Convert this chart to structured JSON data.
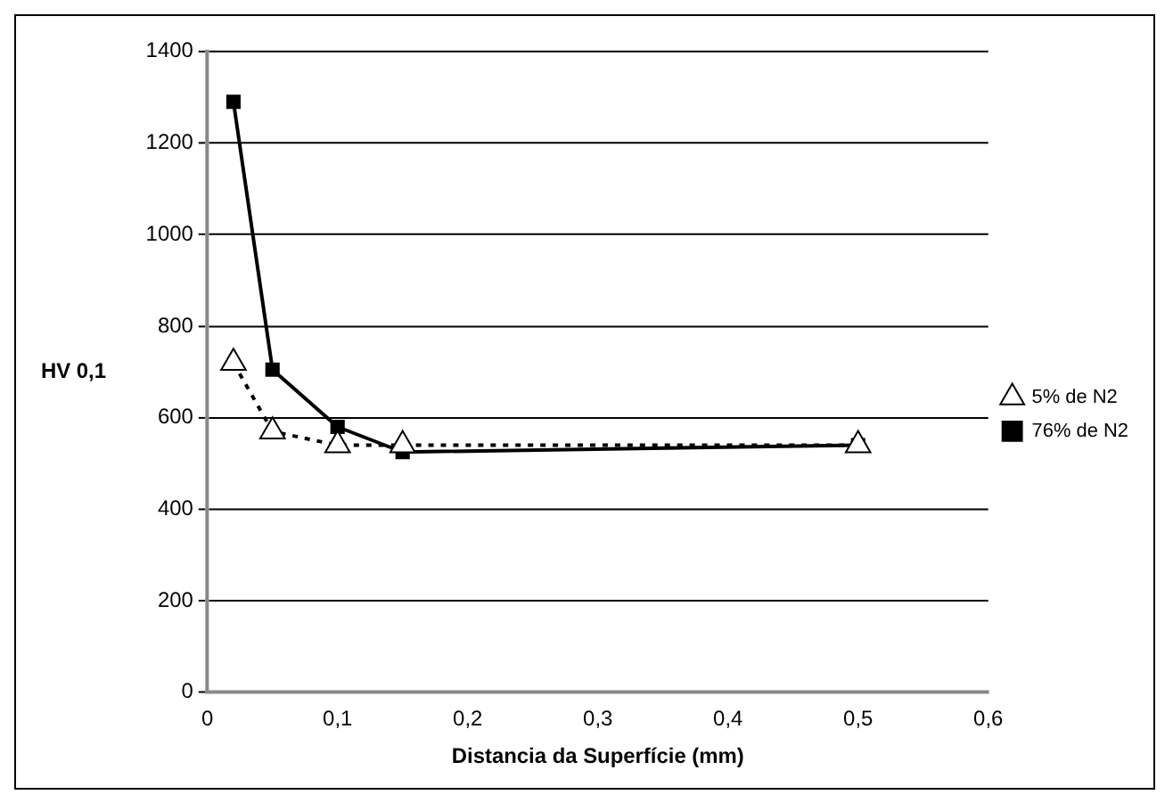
{
  "chart_data": {
    "type": "line",
    "xlabel": "Distancia da Superfície (mm)",
    "ylabel": "HV 0,1",
    "x": [
      0.02,
      0.05,
      0.1,
      0.15,
      0.5
    ],
    "series": [
      {
        "name": "5% de N2",
        "color": "#000000",
        "values": [
          720,
          570,
          540,
          540,
          540
        ],
        "marker": "triangle",
        "line_style": "dotted"
      },
      {
        "name": "76% de N2",
        "color": "#000000",
        "values": [
          1290,
          705,
          580,
          525,
          540
        ],
        "marker": "square",
        "line_style": "solid"
      }
    ],
    "xlim": [
      0,
      0.6
    ],
    "xticks": [
      {
        "value": 0,
        "label": "0"
      },
      {
        "value": 0.1,
        "label": "0,1"
      },
      {
        "value": 0.2,
        "label": "0,2"
      },
      {
        "value": 0.3,
        "label": "0,3"
      },
      {
        "value": 0.4,
        "label": "0,4"
      },
      {
        "value": 0.5,
        "label": "0,5"
      },
      {
        "value": 0.6,
        "label": "0,6"
      }
    ],
    "ylim": [
      0,
      1400
    ],
    "yticks": [
      0,
      200,
      400,
      600,
      800,
      1000,
      1200,
      1400
    ],
    "grid": "y",
    "legend": "right"
  }
}
